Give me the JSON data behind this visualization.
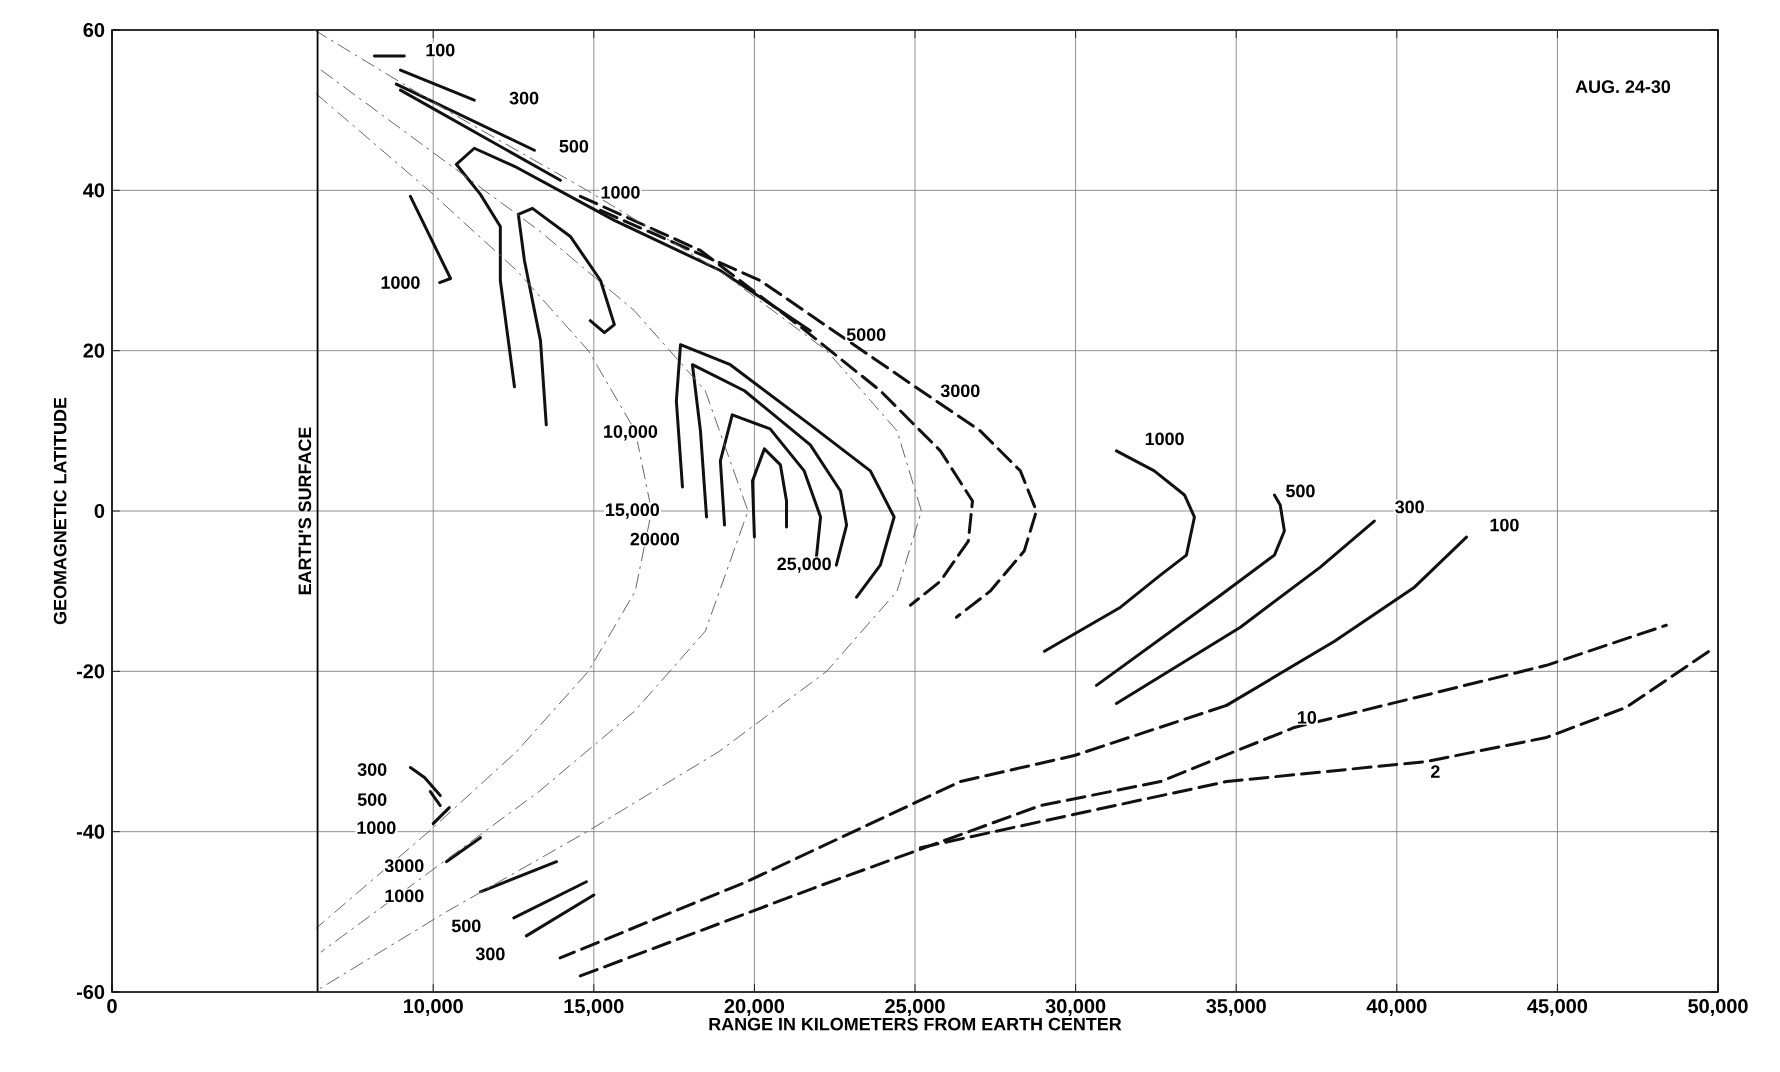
{
  "chart_data": {
    "type": "line",
    "xlabel": "RANGE IN KILOMETERS FROM EARTH CENTER",
    "ylabel": "GEOMAGNETIC LATITUDE",
    "xlim": [
      0,
      50000
    ],
    "ylim": [
      -60,
      60
    ],
    "xticks": [
      0,
      {
        "value": 10000,
        "label": "10,000"
      },
      {
        "value": 15000,
        "label": "15,000"
      },
      {
        "value": 20000,
        "label": "20,000"
      },
      {
        "value": 25000,
        "label": "25,000"
      },
      {
        "value": 30000,
        "label": "30,000"
      },
      {
        "value": 35000,
        "label": "35,000"
      },
      {
        "value": 40000,
        "label": "40,000"
      },
      {
        "value": 45000,
        "label": "45,000"
      },
      {
        "value": 50000,
        "label": "50,000"
      }
    ],
    "yticks": [
      -60,
      -40,
      -20,
      0,
      20,
      40,
      60
    ],
    "grid": true,
    "ref_lines": [
      {
        "axis": "x",
        "value": 6400,
        "label": "EARTH'S SURFACE"
      }
    ],
    "series": [
      {
        "color": "#111111",
        "line_style": "solid",
        "x": [
          9100,
          8170
        ],
        "values": [
          56.75,
          56.75
        ]
      },
      {
        "color": "#111111",
        "line_style": "solid",
        "x": [
          11280,
          8980
        ],
        "values": [
          51.25,
          55
        ]
      },
      {
        "color": "#111111",
        "line_style": "solid",
        "x": [
          13150,
          8850
        ],
        "values": [
          45,
          53.25
        ]
      },
      {
        "color": "#111111",
        "line_style": "solid",
        "x": [
          13960,
          8980
        ],
        "values": [
          41.25,
          52.5
        ]
      },
      {
        "color": "#111111",
        "line_style": "solid",
        "x": [
          10200,
          10540,
          9290
        ],
        "values": [
          28.5,
          29,
          39.25
        ]
      },
      {
        "color": "#111111",
        "line_style": "solid",
        "x": [
          12530,
          12090,
          12090,
          11470,
          10720,
          11280,
          12530,
          15640,
          18940,
          21740
        ],
        "values": [
          15.5,
          28.75,
          35.5,
          39.5,
          43.25,
          45.25,
          43,
          36.25,
          30,
          22.5
        ]
      },
      {
        "color": "#111111",
        "line_style": "solid",
        "x": [
          13520,
          13340,
          12840,
          12650,
          13090,
          14270,
          15210,
          15640,
          15330,
          14890
        ],
        "values": [
          10.75,
          21.25,
          31.25,
          37,
          37.75,
          34.25,
          28.75,
          23.25,
          22.25,
          23.75
        ]
      },
      {
        "color": "#111111",
        "line_style": "solid",
        "x": [
          17760,
          17570,
          17700,
          19250,
          21740,
          23610,
          24350,
          23920,
          23180
        ],
        "values": [
          3,
          13.75,
          20.75,
          18.25,
          10.75,
          5,
          -0.75,
          -6.75,
          -10.75
        ]
      },
      {
        "color": "#111111",
        "line_style": "solid",
        "x": [
          18510,
          18320,
          18070,
          19690,
          21740,
          22680,
          22870,
          22550
        ],
        "values": [
          -0.75,
          10,
          18.25,
          15,
          8.25,
          2.5,
          -1.75,
          -6.75
        ]
      },
      {
        "color": "#111111",
        "line_style": "solid",
        "x": [
          19070,
          18940,
          19310,
          20490,
          21550,
          22060,
          21930
        ],
        "values": [
          -1.75,
          6.25,
          12,
          10.25,
          5,
          -0.75,
          -5.75
        ]
      },
      {
        "color": "#111111",
        "line_style": "solid",
        "x": [
          20000,
          19940,
          20310,
          20810,
          21000,
          21000
        ],
        "values": [
          -3.25,
          3.75,
          7.75,
          5.75,
          1.25,
          -2
        ]
      },
      {
        "color": "#111111",
        "line_style": "dashed",
        "x": [
          14580,
          18320,
          21430,
          23920,
          25790,
          26790,
          26660,
          25790,
          24860
        ],
        "values": [
          39.25,
          32.5,
          23,
          15,
          7.5,
          1.25,
          -3.75,
          -8.75,
          -11.75
        ]
      },
      {
        "color": "#111111",
        "line_style": "dashed",
        "x": [
          15210,
          20180,
          24730,
          27030,
          28280,
          28780,
          28400,
          27340,
          26290
        ],
        "values": [
          37.5,
          28.75,
          16.25,
          10,
          5,
          0,
          -5,
          -10,
          -13.25
        ]
      },
      {
        "color": "#111111",
        "line_style": "solid",
        "x": [
          31270,
          32450,
          33390,
          33700,
          33450,
          32640,
          31400,
          29030
        ],
        "values": [
          7.5,
          5,
          2,
          -0.75,
          -5.5,
          -8,
          -12,
          -17.5
        ]
      },
      {
        "color": "#111111",
        "line_style": "solid",
        "x": [
          36190,
          36370,
          36500,
          36190,
          34510,
          30650
        ],
        "values": [
          2,
          0.75,
          -2.5,
          -5.5,
          -10.5,
          -21.75
        ]
      },
      {
        "color": "#111111",
        "line_style": "solid",
        "x": [
          39300,
          37620,
          35130,
          31270
        ],
        "values": [
          -1.25,
          -7,
          -14.5,
          -24
        ]
      },
      {
        "color": "#111111",
        "line_style": "solid",
        "x": [
          42170,
          40550,
          38060,
          34700
        ],
        "values": [
          -3.25,
          -9.5,
          -16.25,
          -24.25
        ]
      },
      {
        "color": "#111111",
        "line_style": "dashed",
        "x": [
          34700,
          29960,
          26410,
          19750,
          13950
        ],
        "values": [
          -24.25,
          -30.5,
          -33.75,
          -46.25,
          -55.75
        ]
      },
      {
        "color": "#111111",
        "line_style": "dashed",
        "x": [
          14580,
          21870,
          28900,
          32640,
          36810,
          44660,
          48390
        ],
        "values": [
          -58,
          -47,
          -36.75,
          -33.75,
          -27,
          -19.25,
          -14.25
        ]
      },
      {
        "color": "#111111",
        "line_style": "dashed",
        "x": [
          25170,
          28900,
          34700,
          40920,
          44660,
          47140,
          49900
        ],
        "values": [
          -42,
          -38.75,
          -33.75,
          -31.25,
          -28.25,
          -24.5,
          -17
        ]
      },
      {
        "color": "#111111",
        "line_style": "solid",
        "x": [
          9290,
          9730,
          10220
        ],
        "values": [
          -32,
          -33.25,
          -35.5
        ]
      },
      {
        "color": "#111111",
        "line_style": "solid",
        "x": [
          9910,
          10220
        ],
        "values": [
          -35,
          -36.75
        ]
      },
      {
        "color": "#111111",
        "line_style": "solid",
        "x": [
          10000,
          10500
        ],
        "values": [
          -39,
          -37
        ]
      },
      {
        "color": "#111111",
        "line_style": "solid",
        "x": [
          10410,
          11470
        ],
        "values": [
          -43.75,
          -40.75
        ]
      },
      {
        "color": "#111111",
        "line_style": "solid",
        "x": [
          11470,
          13840
        ],
        "values": [
          -47.5,
          -43.75
        ]
      },
      {
        "color": "#111111",
        "line_style": "solid",
        "x": [
          12510,
          14770
        ],
        "values": [
          -50.75,
          -46.25
        ]
      },
      {
        "color": "#111111",
        "line_style": "solid",
        "x": [
          12900,
          15000
        ],
        "values": [
          -53,
          -47.9
        ]
      },
      {
        "color": "#666666",
        "line_style": "dotted",
        "x": [
          6370,
          9860,
          12600,
          14830,
          16290,
          16800,
          16290,
          14830,
          12600,
          9860,
          6370
        ],
        "values": [
          52,
          40,
          30,
          20,
          10,
          0,
          -10,
          -20,
          -30,
          -40,
          -52
        ]
      },
      {
        "color": "#666666",
        "line_style": "dotted",
        "x": [
          6510,
          9900,
          13290,
          16260,
          18470,
          19800,
          18470,
          16260,
          13290,
          9900,
          6510
        ],
        "values": [
          55,
          45,
          35,
          25,
          15,
          0,
          -15,
          -25,
          -35,
          -45,
          -55
        ]
      },
      {
        "color": "#666666",
        "line_style": "dotted",
        "x": [
          6300,
          10410,
          14790,
          18900,
          22250,
          24440,
          25200,
          24440,
          22250,
          18900,
          14790,
          10410,
          6300
        ],
        "values": [
          60,
          50,
          40,
          30,
          20,
          10,
          0,
          -10,
          -20,
          -30,
          -40,
          -50,
          -60
        ]
      }
    ],
    "annotations": [
      "AUG. 24-30",
      {
        "text": "100",
        "x": 10220,
        "y": 57.5
      },
      {
        "text": "300",
        "x": 12830,
        "y": 51.5
      },
      {
        "text": "500",
        "x": 14380,
        "y": 45.5
      },
      {
        "text": "1000",
        "x": 15830,
        "y": 39.75
      },
      {
        "text": "1000",
        "x": 8980,
        "y": 28.5
      },
      {
        "text": "5000",
        "x": 23480,
        "y": 22
      },
      {
        "text": "3000",
        "x": 26410,
        "y": 15
      },
      {
        "text": "10,000",
        "x": 16140,
        "y": 9.75
      },
      {
        "text": "15,000",
        "x": 16200,
        "y": 0
      },
      {
        "text": "20000",
        "x": 16900,
        "y": -3.5
      },
      {
        "text": "25,000",
        "x": 21550,
        "y": -6.75
      },
      {
        "text": "1000",
        "x": 32770,
        "y": 9
      },
      {
        "text": "500",
        "x": 37000,
        "y": 2.5
      },
      {
        "text": "300",
        "x": 40400,
        "y": 0.5
      },
      {
        "text": "100",
        "x": 43350,
        "y": -1.75
      },
      {
        "text": "10",
        "x": 37200,
        "y": -25.75
      },
      {
        "text": "2",
        "x": 41200,
        "y": -32.5
      },
      {
        "text": "300",
        "x": 8100,
        "y": -32.25
      },
      {
        "text": "500",
        "x": 8100,
        "y": -36
      },
      {
        "text": "1000",
        "x": 8230,
        "y": -39.5
      },
      {
        "text": "3000",
        "x": 9100,
        "y": -44.25
      },
      {
        "text": "1000",
        "x": 9100,
        "y": -48
      },
      {
        "text": "500",
        "x": 11030,
        "y": -51.75
      },
      {
        "text": "300",
        "x": 11780,
        "y": -55.25
      }
    ]
  }
}
